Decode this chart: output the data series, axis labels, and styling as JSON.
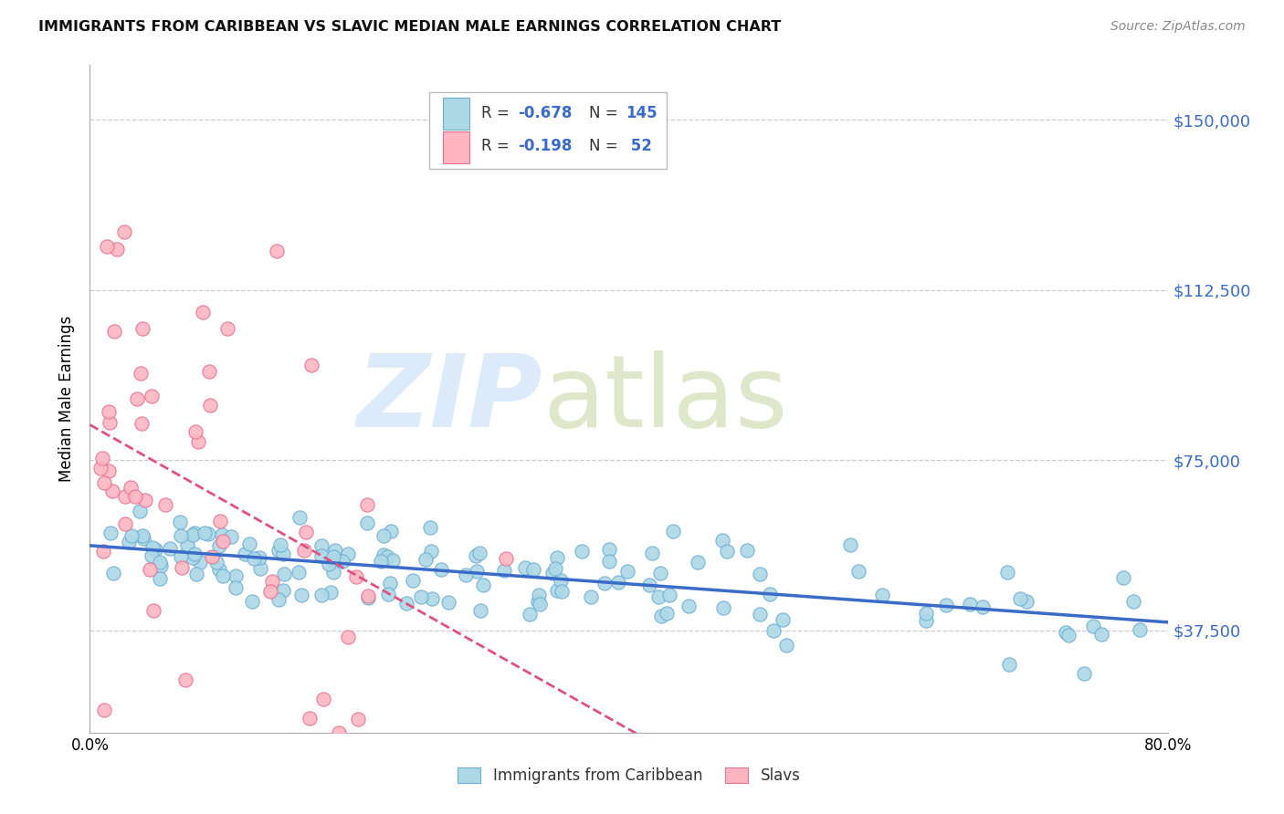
{
  "title": "IMMIGRANTS FROM CARIBBEAN VS SLAVIC MEDIAN MALE EARNINGS CORRELATION CHART",
  "source": "Source: ZipAtlas.com",
  "ylabel": "Median Male Earnings",
  "yticks": [
    37500,
    75000,
    112500,
    150000
  ],
  "ytick_labels": [
    "$37,500",
    "$75,000",
    "$112,500",
    "$150,000"
  ],
  "xlim": [
    0.0,
    0.8
  ],
  "ylim": [
    15000,
    162000
  ],
  "caribbean_color": "#ADD8E6",
  "caribbean_edge": "#6BAED6",
  "slavic_color": "#FFB6C1",
  "slavic_edge": "#E87090",
  "caribbean_line_color": "#3A6BC8",
  "slavic_line_color": "#E05080",
  "background_color": "#ffffff",
  "grid_color": "#cccccc",
  "caribbean_R": -0.678,
  "caribbean_N": 145,
  "slavic_R": -0.198,
  "slavic_N": 52
}
